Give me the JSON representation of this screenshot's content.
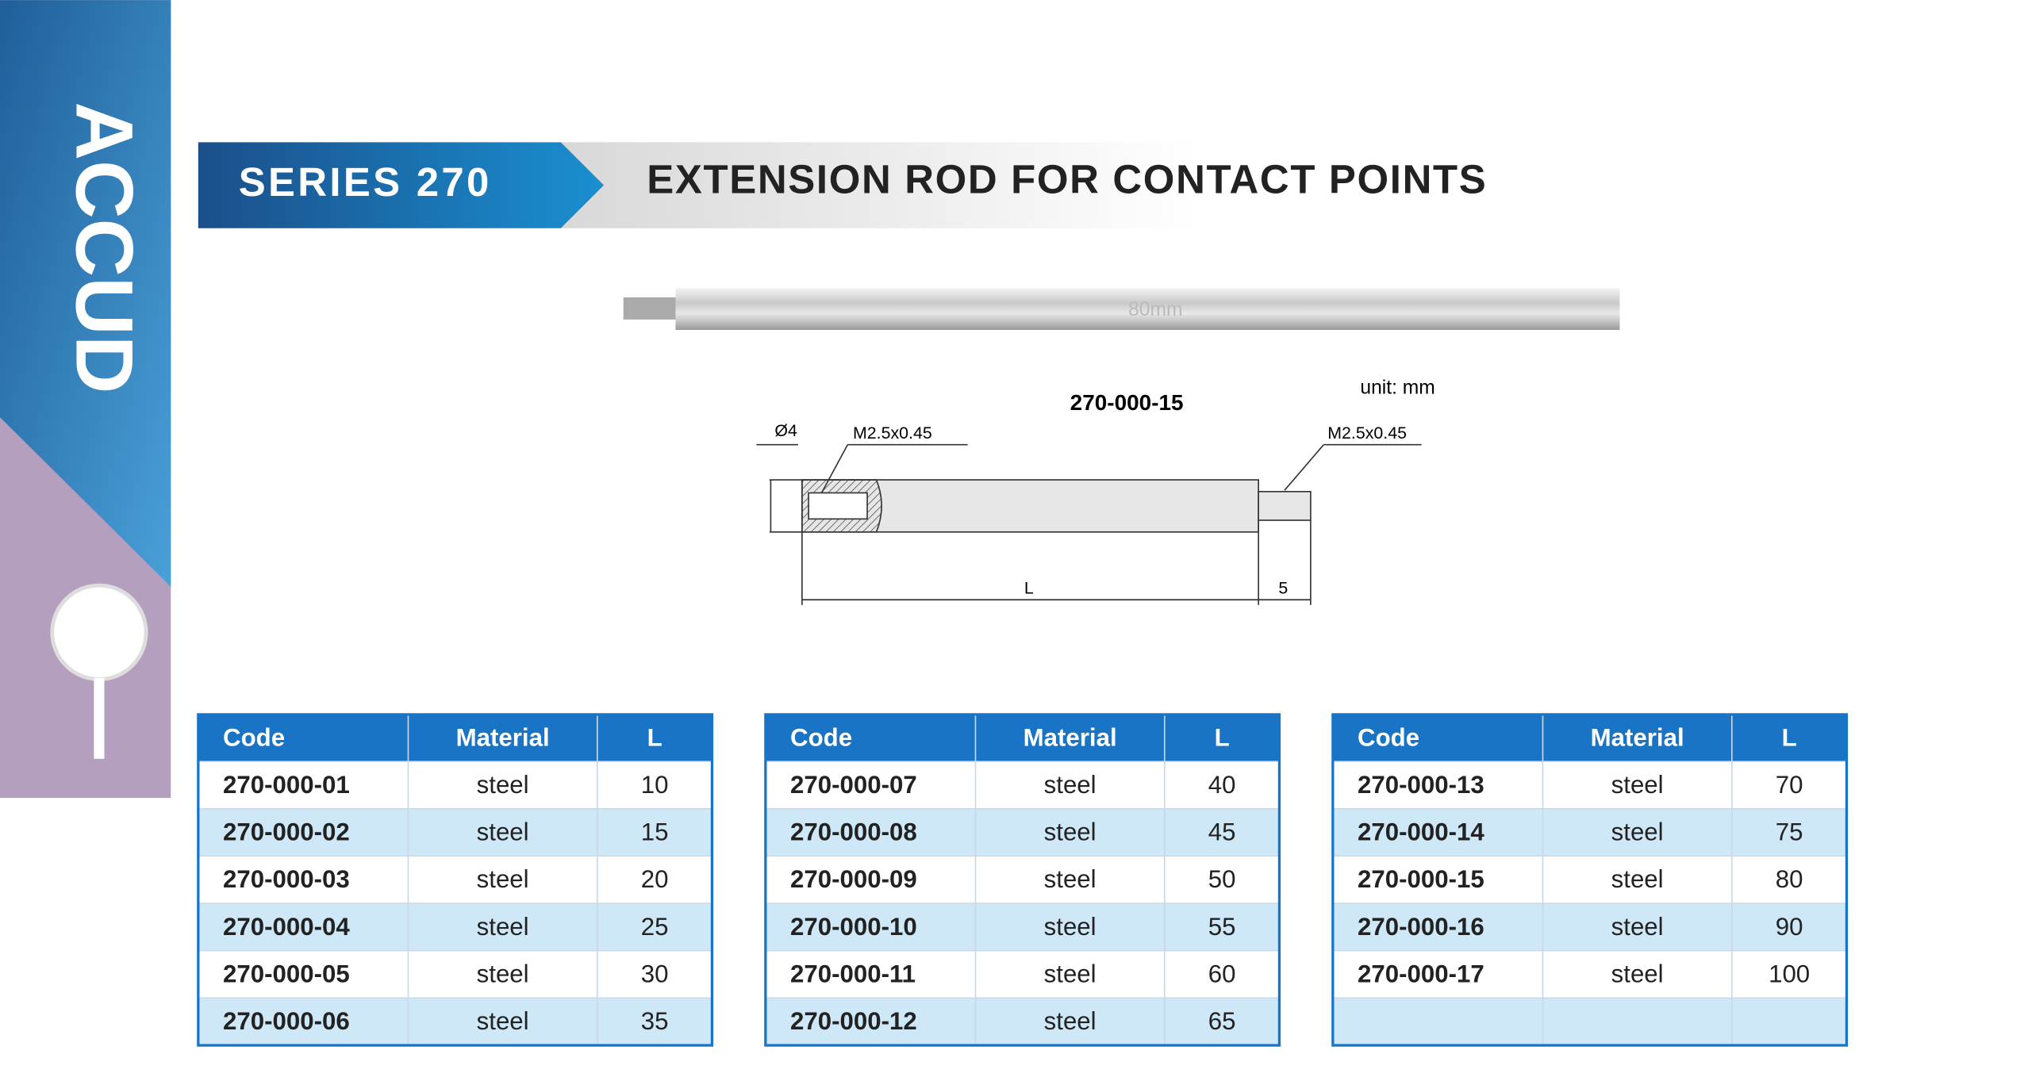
{
  "brand": "ACCUD",
  "header": {
    "series": "SERIES 270",
    "title": "EXTENSION ROD FOR CONTACT POINTS"
  },
  "photo": {
    "label": "80mm"
  },
  "drawing": {
    "code": "270-000-15",
    "unit": "unit: mm",
    "diameter": "Ø4",
    "thread_left": "M2.5x0.45",
    "thread_right": "M2.5x0.45",
    "length": "L",
    "thread_length": "5"
  },
  "tables": [
    {
      "columns": [
        "Code",
        "Material",
        "L"
      ],
      "rows": [
        [
          "270-000-01",
          "steel",
          10
        ],
        [
          "270-000-02",
          "steel",
          15
        ],
        [
          "270-000-03",
          "steel",
          20
        ],
        [
          "270-000-04",
          "steel",
          25
        ],
        [
          "270-000-05",
          "steel",
          30
        ],
        [
          "270-000-06",
          "steel",
          35
        ]
      ]
    },
    {
      "columns": [
        "Code",
        "Material",
        "L"
      ],
      "rows": [
        [
          "270-000-07",
          "steel",
          40
        ],
        [
          "270-000-08",
          "steel",
          45
        ],
        [
          "270-000-09",
          "steel",
          50
        ],
        [
          "270-000-10",
          "steel",
          55
        ],
        [
          "270-000-11",
          "steel",
          60
        ],
        [
          "270-000-12",
          "steel",
          65
        ]
      ]
    },
    {
      "columns": [
        "Code",
        "Material",
        "L"
      ],
      "rows": [
        [
          "270-000-13",
          "steel",
          70
        ],
        [
          "270-000-14",
          "steel",
          75
        ],
        [
          "270-000-15",
          "steel",
          80
        ],
        [
          "270-000-16",
          "steel",
          90
        ],
        [
          "270-000-17",
          "steel",
          100
        ]
      ]
    }
  ]
}
